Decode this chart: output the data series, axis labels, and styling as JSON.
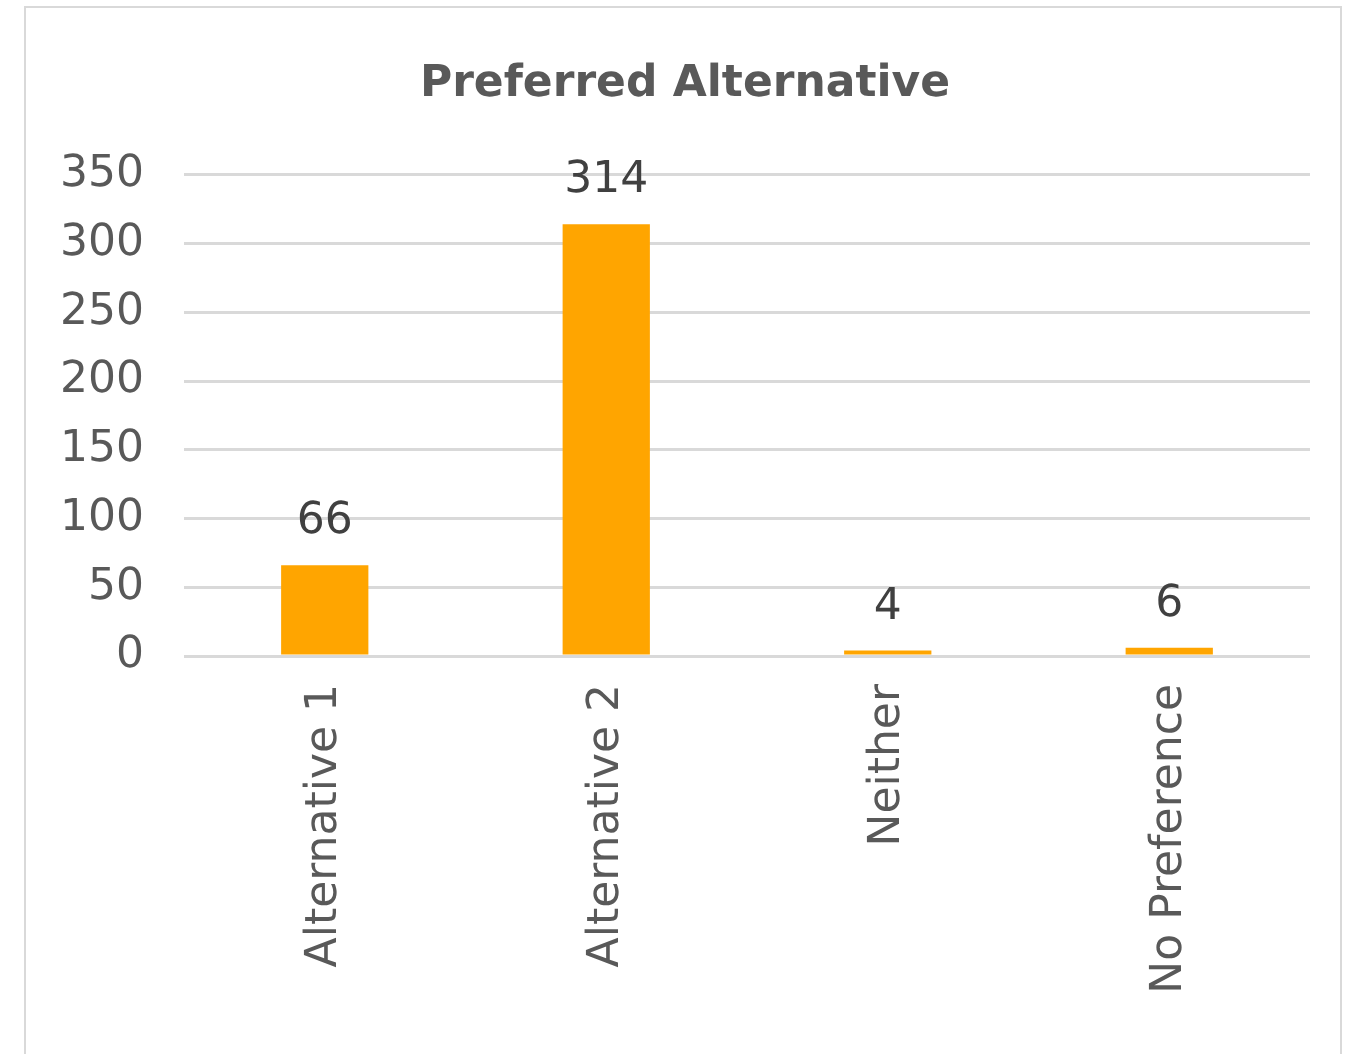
{
  "chart_data": {
    "type": "bar",
    "title": "Preferred Alternative",
    "categories": [
      "Alternative 1",
      "Alternative 2",
      "Neither",
      "No Preference"
    ],
    "values": [
      66,
      314,
      4,
      6
    ],
    "color": "#ffa500",
    "ylim": [
      0,
      350
    ],
    "yticks": [
      0,
      50,
      100,
      150,
      200,
      250,
      300,
      350
    ],
    "grid": "y",
    "data_labels": true
  }
}
